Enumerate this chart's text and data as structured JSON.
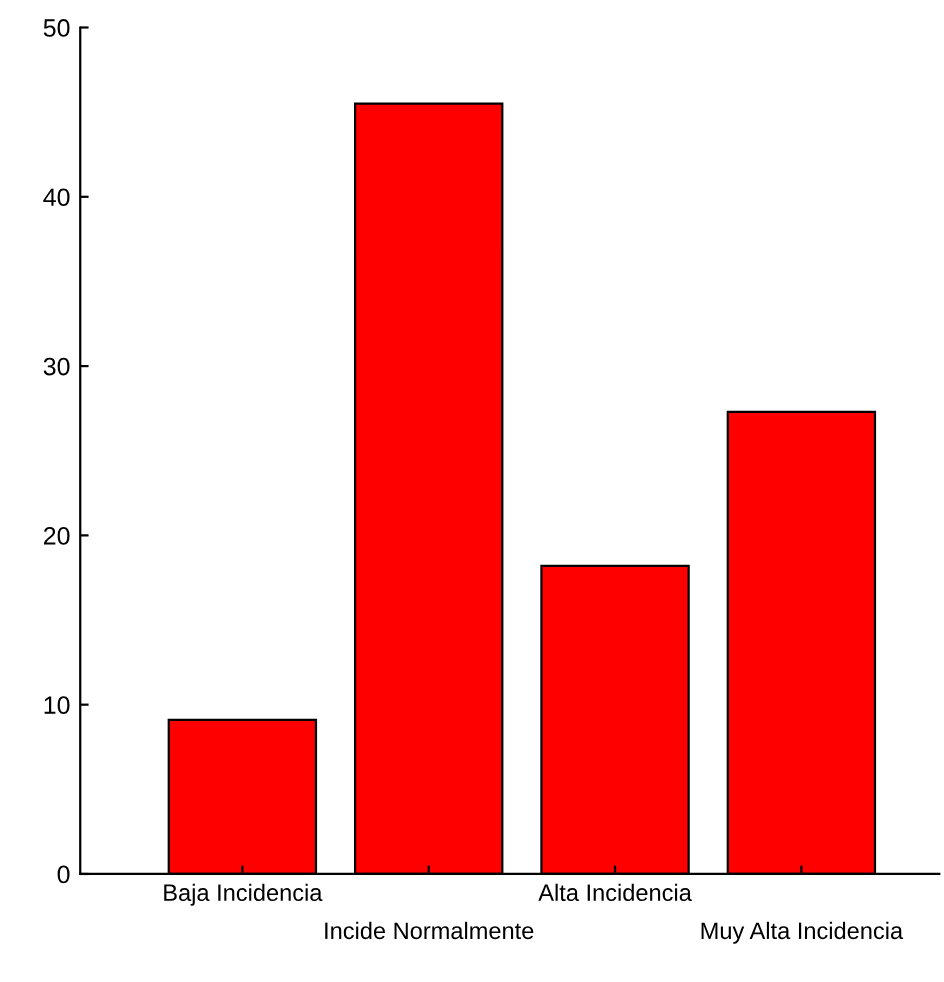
{
  "chart_data": {
    "type": "bar",
    "categories": [
      "Baja Incidencia",
      "Incide Normalmente",
      "Alta Incidencia",
      "Muy Alta Incidencia"
    ],
    "values": [
      9.1,
      45.5,
      18.2,
      27.3
    ],
    "color": "#ff0000",
    "ylim": [
      0,
      50
    ],
    "yticks": [
      0,
      10,
      20,
      30,
      40,
      50
    ],
    "grid": false,
    "legend": false
  }
}
